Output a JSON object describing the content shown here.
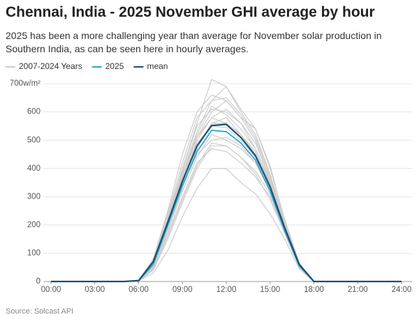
{
  "chart_data": {
    "type": "line",
    "title": "Chennai, India - 2025 November GHI average by hour",
    "subtitle": "2025 has been a more challenging year than average for November solar production in Southern India, as can be seen here in hourly averages.",
    "source": "Source: Solcast API",
    "x": [
      0,
      1,
      2,
      3,
      4,
      5,
      6,
      7,
      8,
      9,
      10,
      11,
      12,
      13,
      14,
      15,
      16,
      17,
      18,
      19,
      20,
      21,
      22,
      23,
      24
    ],
    "xlim": [
      0,
      24
    ],
    "xticks": [
      {
        "value": 0,
        "label": "00:00"
      },
      {
        "value": 3,
        "label": "03:00"
      },
      {
        "value": 6,
        "label": "06:00"
      },
      {
        "value": 9,
        "label": "09:00"
      },
      {
        "value": 12,
        "label": "12:00"
      },
      {
        "value": 15,
        "label": "15:00"
      },
      {
        "value": 18,
        "label": "18:00"
      },
      {
        "value": 21,
        "label": "21:00"
      },
      {
        "value": 24,
        "label": "24:00"
      }
    ],
    "ylim": [
      0,
      720
    ],
    "yticks": [
      0,
      100,
      200,
      300,
      400,
      500,
      600,
      {
        "value": 700,
        "label": "700w/m²"
      }
    ],
    "grid": true,
    "series": [
      {
        "name": "2007-2024 Years",
        "color": "#cccccc",
        "values": [
          [
            0,
            0,
            0,
            0,
            0,
            0,
            3,
            50,
            180,
            330,
            470,
            560,
            560,
            520,
            450,
            340,
            190,
            55,
            0,
            0,
            0,
            0,
            0,
            0,
            0
          ],
          [
            0,
            0,
            0,
            0,
            0,
            0,
            4,
            70,
            230,
            400,
            560,
            715,
            690,
            610,
            540,
            400,
            220,
            65,
            0,
            0,
            0,
            0,
            0,
            0,
            0
          ],
          [
            0,
            0,
            0,
            0,
            0,
            0,
            2,
            40,
            150,
            280,
            400,
            480,
            480,
            440,
            380,
            290,
            170,
            50,
            0,
            0,
            0,
            0,
            0,
            0,
            0
          ],
          [
            0,
            0,
            0,
            0,
            0,
            0,
            3,
            60,
            200,
            370,
            510,
            600,
            640,
            580,
            500,
            370,
            200,
            60,
            0,
            0,
            0,
            0,
            0,
            0,
            0
          ],
          [
            0,
            0,
            0,
            0,
            0,
            0,
            2,
            30,
            110,
            230,
            330,
            400,
            400,
            350,
            310,
            240,
            150,
            45,
            0,
            0,
            0,
            0,
            0,
            0,
            0
          ],
          [
            0,
            0,
            0,
            0,
            0,
            0,
            4,
            75,
            240,
            420,
            580,
            640,
            690,
            600,
            520,
            380,
            210,
            62,
            0,
            0,
            0,
            0,
            0,
            0,
            0
          ],
          [
            0,
            0,
            0,
            0,
            0,
            0,
            3,
            65,
            220,
            360,
            500,
            580,
            610,
            560,
            470,
            350,
            195,
            58,
            0,
            0,
            0,
            0,
            0,
            0,
            0
          ],
          [
            0,
            0,
            0,
            0,
            0,
            0,
            3,
            55,
            190,
            340,
            450,
            500,
            510,
            480,
            420,
            320,
            180,
            55,
            0,
            0,
            0,
            0,
            0,
            0,
            0
          ],
          [
            0,
            0,
            0,
            0,
            0,
            0,
            4,
            80,
            250,
            450,
            600,
            660,
            640,
            580,
            540,
            410,
            215,
            60,
            0,
            0,
            0,
            0,
            0,
            0,
            0
          ],
          [
            0,
            0,
            0,
            0,
            0,
            0,
            3,
            60,
            210,
            380,
            520,
            620,
            590,
            540,
            470,
            355,
            200,
            58,
            0,
            0,
            0,
            0,
            0,
            0,
            0
          ],
          [
            0,
            0,
            0,
            0,
            0,
            0,
            3,
            45,
            170,
            300,
            420,
            470,
            460,
            420,
            370,
            300,
            175,
            52,
            0,
            0,
            0,
            0,
            0,
            0,
            0
          ],
          [
            0,
            0,
            0,
            0,
            0,
            0,
            3,
            65,
            220,
            390,
            530,
            640,
            650,
            590,
            510,
            380,
            205,
            60,
            0,
            0,
            0,
            0,
            0,
            0,
            0
          ],
          [
            0,
            0,
            0,
            0,
            0,
            0,
            3,
            55,
            200,
            350,
            480,
            560,
            580,
            520,
            450,
            340,
            190,
            56,
            0,
            0,
            0,
            0,
            0,
            0,
            0
          ],
          [
            0,
            0,
            0,
            0,
            0,
            0,
            3,
            50,
            180,
            320,
            440,
            520,
            500,
            470,
            420,
            330,
            185,
            55,
            0,
            0,
            0,
            0,
            0,
            0,
            0
          ],
          [
            0,
            0,
            0,
            0,
            0,
            0,
            4,
            70,
            230,
            400,
            550,
            610,
            600,
            560,
            490,
            360,
            200,
            60,
            0,
            0,
            0,
            0,
            0,
            0,
            0
          ],
          [
            0,
            0,
            0,
            0,
            0,
            0,
            3,
            60,
            200,
            360,
            490,
            550,
            545,
            500,
            440,
            335,
            190,
            57,
            0,
            0,
            0,
            0,
            0,
            0,
            0
          ],
          [
            0,
            0,
            0,
            0,
            0,
            0,
            3,
            45,
            160,
            290,
            410,
            490,
            480,
            440,
            390,
            310,
            180,
            53,
            0,
            0,
            0,
            0,
            0,
            0,
            0
          ],
          [
            0,
            0,
            0,
            0,
            0,
            0,
            3,
            65,
            215,
            380,
            510,
            580,
            560,
            520,
            460,
            345,
            195,
            58,
            0,
            0,
            0,
            0,
            0,
            0,
            0
          ]
        ]
      },
      {
        "name": "2025",
        "color": "#2aa5cf",
        "values": [
          0,
          0,
          0,
          0,
          0,
          0,
          3,
          60,
          200,
          340,
          460,
          535,
          530,
          490,
          430,
          320,
          180,
          55,
          0,
          0,
          0,
          0,
          0,
          0,
          0
        ]
      },
      {
        "name": "mean",
        "color": "#1b4f72",
        "values": [
          0,
          0,
          0,
          0,
          0,
          0,
          3,
          70,
          210,
          355,
          480,
          552,
          556,
          510,
          445,
          335,
          190,
          60,
          0,
          0,
          0,
          0,
          0,
          0,
          0
        ]
      }
    ]
  }
}
